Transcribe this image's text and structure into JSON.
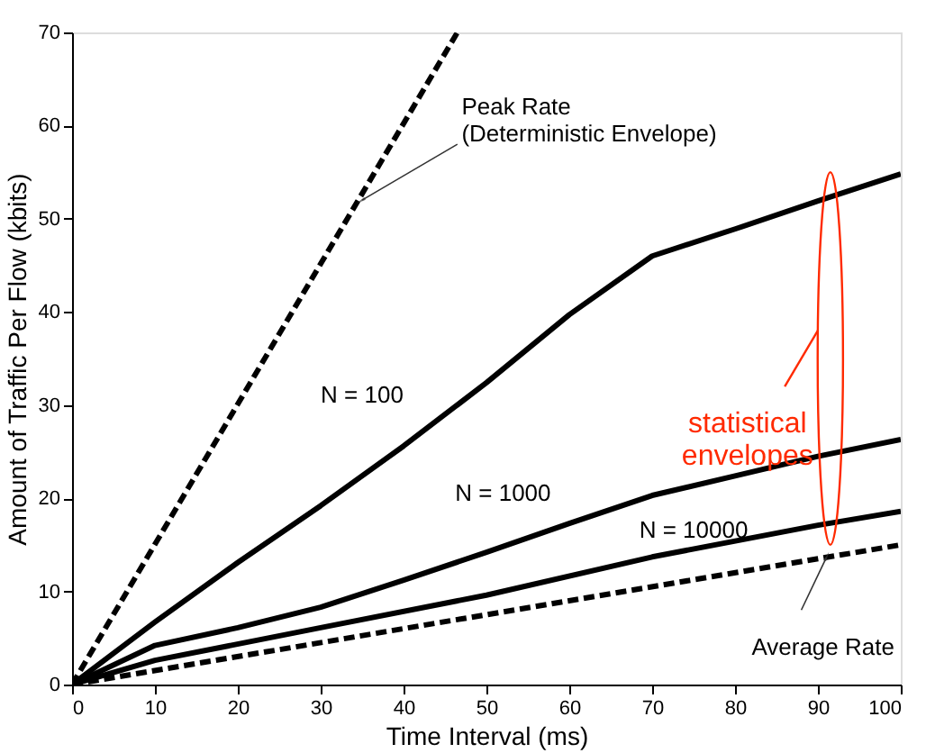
{
  "chart_data": {
    "type": "line",
    "xlabel": "Time Interval (ms)",
    "ylabel": "Amount of Traffic Per Flow (kbits)",
    "xlim": [
      0,
      100
    ],
    "ylim": [
      0,
      70
    ],
    "xticks": [
      0,
      10,
      20,
      30,
      40,
      50,
      60,
      70,
      80,
      90,
      100
    ],
    "yticks": [
      0,
      10,
      20,
      30,
      40,
      50,
      60,
      70
    ],
    "grid": false,
    "marker": "none",
    "series": [
      {
        "color": "#000000",
        "line_style": "dashed",
        "x": [
          0,
          46.5
        ],
        "values": [
          0,
          70
        ]
      },
      {
        "name": "N = 100",
        "color": "#000000",
        "line_style": "solid",
        "x": [
          0,
          10,
          20,
          30,
          40,
          50,
          60,
          70,
          80,
          90,
          100
        ],
        "values": [
          0,
          6.7,
          13.1,
          19.2,
          25.6,
          32.4,
          39.7,
          46,
          48.9,
          51.9,
          54.8
        ]
      },
      {
        "name": "N = 1000",
        "color": "#000000",
        "line_style": "solid",
        "x": [
          0,
          10,
          20,
          30,
          40,
          50,
          60,
          70,
          80,
          90,
          100
        ],
        "values": [
          0,
          4.2,
          6.1,
          8.3,
          11.2,
          14.2,
          17.3,
          20.3,
          22.4,
          24.5,
          26.3
        ]
      },
      {
        "name": "N = 10000",
        "color": "#000000",
        "line_style": "solid",
        "x": [
          0,
          10,
          30,
          50,
          70,
          90,
          100
        ],
        "values": [
          0,
          2.6,
          6.1,
          9.6,
          13.7,
          17.1,
          18.6
        ]
      },
      {
        "color": "#000000",
        "line_style": "dashed",
        "x": [
          0,
          100
        ],
        "values": [
          0,
          15
        ]
      }
    ],
    "annotations": [
      {
        "text": "Peak Rate\n(Deterministic Envelope)",
        "x": 35,
        "y": 52
      },
      {
        "text": "Average Rate",
        "x": 91,
        "y": 13.6
      },
      "statistical\nenvelopes"
    ]
  }
}
